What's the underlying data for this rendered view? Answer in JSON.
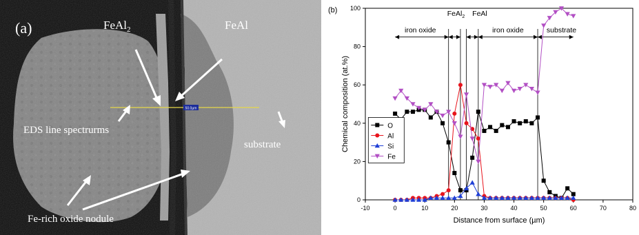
{
  "panel_a": {
    "label": "(a)",
    "annotations": {
      "feal2_base": "FeAl",
      "feal2_sub": "2",
      "feal": "FeAl",
      "eds": "EDS line spectrurms",
      "substrate": "substrate",
      "nodule": "Fe-rich oxide nodule"
    },
    "scale_tag": "50.0µm"
  },
  "chart_data": {
    "type": "line",
    "panel_label": "(b)",
    "xlabel": "Distance from surface (µm)",
    "ylabel": "Chemical composition (at.%)",
    "xlim": [
      -10,
      80
    ],
    "ylim": [
      0,
      100
    ],
    "xticks": [
      "-10",
      "0",
      "10",
      "20",
      "30",
      "40",
      "50",
      "60",
      "70",
      "80"
    ],
    "yticks": [
      "0",
      "20",
      "40",
      "60",
      "80",
      "100"
    ],
    "region_labels": {
      "iron_oxide_1": "iron oxide",
      "feal2_base": "FeAl",
      "feal2_sub": "2",
      "feal": "FeAl",
      "iron_oxide_2": "iron oxide",
      "substrate": "substrate"
    },
    "region_boundaries": [
      18,
      22,
      24,
      28,
      48
    ],
    "legend_position": "lower-left",
    "x": [
      0,
      2,
      4,
      6,
      8,
      10,
      12,
      14,
      16,
      18,
      20,
      22,
      24,
      26,
      28,
      30,
      32,
      34,
      36,
      38,
      40,
      42,
      44,
      46,
      48,
      50,
      52,
      54,
      56,
      58,
      60
    ],
    "series": [
      {
        "name": "O",
        "color": "#000000",
        "marker": "square",
        "values": [
          45,
          42,
          46,
          46,
          47,
          47,
          43,
          46,
          40,
          30,
          14,
          5,
          5,
          22,
          46,
          36,
          38,
          36,
          39,
          38,
          41,
          40,
          41,
          40,
          43,
          10,
          4,
          2,
          1,
          6,
          3
        ]
      },
      {
        "name": "Al",
        "color": "#e8141c",
        "marker": "circle",
        "values": [
          0,
          0,
          0,
          1,
          1,
          1,
          1,
          2,
          3,
          5,
          45,
          60,
          40,
          37,
          32,
          2,
          1,
          1,
          1,
          1,
          1,
          1,
          1,
          1,
          1,
          1,
          1,
          1,
          1,
          1,
          0
        ]
      },
      {
        "name": "Si",
        "color": "#1f3fd6",
        "marker": "triangle-up",
        "values": [
          0,
          0,
          0,
          0,
          0,
          0,
          1,
          1,
          1,
          1,
          1,
          2,
          6,
          9,
          3,
          1,
          1,
          1,
          1,
          1,
          1,
          1,
          1,
          1,
          1,
          1,
          1,
          1,
          1,
          1,
          1
        ]
      },
      {
        "name": "Fe",
        "color": "#b24fc4",
        "marker": "triangle-down",
        "values": [
          53,
          57,
          53,
          50,
          48,
          47,
          50,
          46,
          44,
          46,
          40,
          33,
          55,
          32,
          20,
          60,
          59,
          60,
          57,
          61,
          57,
          58,
          60,
          58,
          56,
          91,
          95,
          98,
          100,
          97,
          96
        ]
      }
    ]
  }
}
